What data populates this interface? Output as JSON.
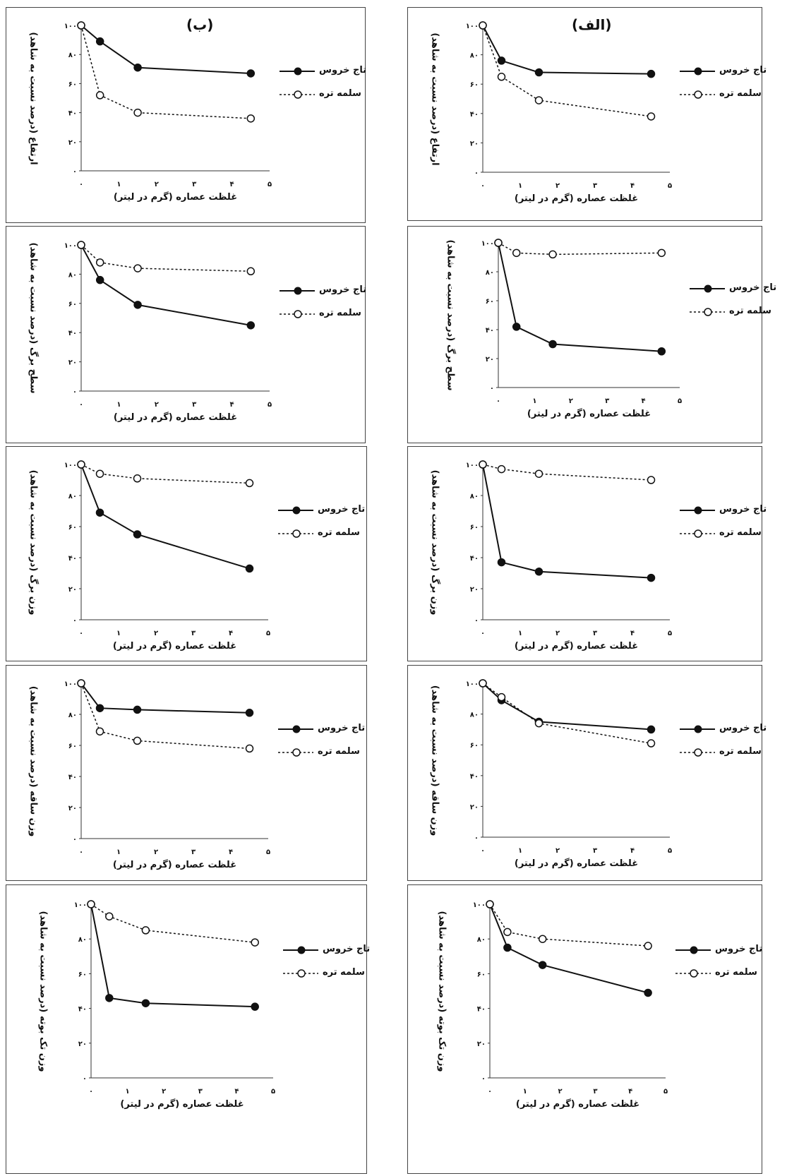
{
  "panel_labels": {
    "right": "(الف)",
    "left": "(ب)"
  },
  "legend": {
    "series1": "تاج خروس",
    "series2": "سلمه تره"
  },
  "x_ticks": [
    "۰",
    "۱",
    "۲",
    "۳",
    "۴",
    "۵"
  ],
  "y_ticks": [
    "۰",
    "۲۰",
    "۴۰",
    "۶۰",
    "۸۰",
    "۱۰۰"
  ],
  "colors": {
    "line": "#111111",
    "marker_fill_filled": "#111111",
    "marker_fill_open": "#ffffff"
  },
  "chart_data": [
    {
      "id": "r1",
      "type": "line",
      "xlabel": "غلظت عصاره (گرم در لیتر)",
      "ylabel": "ارتفاع (درصد نسبت به شاهد)",
      "x": [
        0,
        0.5,
        1.5,
        4.5
      ],
      "xlim": [
        0,
        5
      ],
      "ylim": [
        0,
        100
      ],
      "series": [
        {
          "name": "تاج خروس",
          "values": [
            100,
            76,
            68,
            67
          ]
        },
        {
          "name": "سلمه تره",
          "values": [
            100,
            65,
            49,
            38
          ]
        }
      ]
    },
    {
      "id": "l1",
      "type": "line",
      "xlabel": "غلظت عصاره (گرم در لیتر)",
      "ylabel": "ارتفاع (درصد نسبت به شاهد)",
      "x": [
        0,
        0.5,
        1.5,
        4.5
      ],
      "xlim": [
        0,
        5
      ],
      "ylim": [
        0,
        100
      ],
      "series": [
        {
          "name": "تاج خروس",
          "values": [
            100,
            89,
            71,
            67
          ]
        },
        {
          "name": "سلمه تره",
          "values": [
            100,
            52,
            40,
            36
          ]
        }
      ]
    },
    {
      "id": "r2",
      "type": "line",
      "xlabel": "غلظت عصاره (گرم در لیتر)",
      "ylabel": "سطح برگ (درصد نسبت به شاهد)",
      "x": [
        0,
        0.5,
        1.5,
        4.5
      ],
      "xlim": [
        0,
        5
      ],
      "ylim": [
        0,
        100
      ],
      "series": [
        {
          "name": "تاج خروس",
          "values": [
            100,
            42,
            30,
            25
          ]
        },
        {
          "name": "سلمه تره",
          "values": [
            100,
            93,
            92,
            93
          ]
        }
      ]
    },
    {
      "id": "l2",
      "type": "line",
      "xlabel": "غلظت عصاره (گرم در لیتر)",
      "ylabel": "سطح برگ (درصد نسبت به شاهد)",
      "x": [
        0,
        0.5,
        1.5,
        4.5
      ],
      "xlim": [
        0,
        5
      ],
      "ylim": [
        0,
        100
      ],
      "series": [
        {
          "name": "تاج خروس",
          "values": [
            100,
            76,
            59,
            45
          ]
        },
        {
          "name": "سلمه تره",
          "values": [
            100,
            88,
            84,
            82
          ]
        }
      ]
    },
    {
      "id": "r3",
      "type": "line",
      "xlabel": "غلظت عصاره (گرم در لیتر)",
      "ylabel": "وزن برگ (درصد نسبت به شاهد)",
      "x": [
        0,
        0.5,
        1.5,
        4.5
      ],
      "xlim": [
        0,
        5
      ],
      "ylim": [
        0,
        100
      ],
      "series": [
        {
          "name": "تاج خروس",
          "values": [
            100,
            37,
            31,
            27
          ]
        },
        {
          "name": "سلمه تره",
          "values": [
            100,
            97,
            94,
            90
          ]
        }
      ]
    },
    {
      "id": "l3",
      "type": "line",
      "xlabel": "غلظت عصاره (گرم در لیتر)",
      "ylabel": "وزن برگ (درصد نسبت به شاهد)",
      "x": [
        0,
        0.5,
        1.5,
        4.5
      ],
      "xlim": [
        0,
        5
      ],
      "ylim": [
        0,
        100
      ],
      "series": [
        {
          "name": "تاج خروس",
          "values": [
            100,
            69,
            55,
            33
          ]
        },
        {
          "name": "سلمه تره",
          "values": [
            100,
            94,
            91,
            88
          ]
        }
      ]
    },
    {
      "id": "r4",
      "type": "line",
      "xlabel": "غلظت عصاره (گرم در لیتر)",
      "ylabel": "وزن ساقه (درصد نسبت به شاهد)",
      "x": [
        0,
        0.5,
        1.5,
        4.5
      ],
      "xlim": [
        0,
        5
      ],
      "ylim": [
        0,
        100
      ],
      "series": [
        {
          "name": "تاج خروس",
          "values": [
            100,
            89,
            75,
            70
          ]
        },
        {
          "name": "سلمه تره",
          "values": [
            100,
            91,
            74,
            61
          ]
        }
      ]
    },
    {
      "id": "l4",
      "type": "line",
      "xlabel": "غلظت عصاره (گرم در لیتر)",
      "ylabel": "وزن ساقه (درصد نسبت به شاهد)",
      "x": [
        0,
        0.5,
        1.5,
        4.5
      ],
      "xlim": [
        0,
        5
      ],
      "ylim": [
        0,
        100
      ],
      "series": [
        {
          "name": "تاج خروس",
          "values": [
            100,
            84,
            83,
            81
          ]
        },
        {
          "name": "سلمه تره",
          "values": [
            100,
            69,
            63,
            58
          ]
        }
      ]
    },
    {
      "id": "r5",
      "type": "line",
      "xlabel": "غلظت عصاره (گرم در لیتر)",
      "ylabel": "وزن تک بوته (درصد نسبت به شاهد)",
      "x": [
        0,
        0.5,
        1.5,
        4.5
      ],
      "xlim": [
        0,
        5
      ],
      "ylim": [
        0,
        100
      ],
      "series": [
        {
          "name": "تاج خروس",
          "values": [
            100,
            75,
            65,
            49
          ]
        },
        {
          "name": "سلمه تره",
          "values": [
            100,
            84,
            80,
            76
          ]
        }
      ]
    },
    {
      "id": "l5",
      "type": "line",
      "xlabel": "غلظت عصاره (گرم در لیتر)",
      "ylabel": "وزن تک بوته (درصد نسبت به شاهد)",
      "x": [
        0,
        0.5,
        1.5,
        4.5
      ],
      "xlim": [
        0,
        5
      ],
      "ylim": [
        0,
        100
      ],
      "series": [
        {
          "name": "تاج خروس",
          "values": [
            100,
            46,
            43,
            41
          ]
        },
        {
          "name": "سلمه تره",
          "values": [
            100,
            93,
            85,
            78
          ]
        }
      ]
    }
  ]
}
